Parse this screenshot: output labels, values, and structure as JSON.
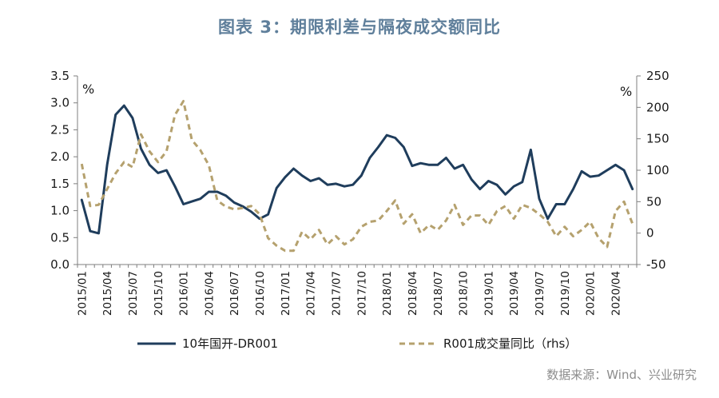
{
  "title": "图表 3：期限利差与隔夜成交额同比",
  "source": "数据来源：Wind、兴业研究",
  "chart_data": {
    "type": "line",
    "left_unit": "%",
    "right_unit": "%",
    "ylim_left": [
      0,
      3.5
    ],
    "yticks_left": [
      "0.0",
      "0.5",
      "1.0",
      "1.5",
      "2.0",
      "2.5",
      "3.0",
      "3.5"
    ],
    "ylim_right": [
      -50,
      250
    ],
    "yticks_right": [
      "-50",
      "0",
      "50",
      "100",
      "150",
      "200",
      "250"
    ],
    "x_tick_labels": [
      "2015/01",
      "2015/04",
      "2015/07",
      "2015/10",
      "2016/01",
      "2016/04",
      "2016/07",
      "2016/10",
      "2017/01",
      "2017/04",
      "2017/07",
      "2017/10",
      "2018/01",
      "2018/04",
      "2018/07",
      "2018/10",
      "2019/01",
      "2019/04",
      "2019/07",
      "2019/10",
      "2020/01",
      "2020/04"
    ],
    "x": [
      "2015/01",
      "2015/02",
      "2015/03",
      "2015/04",
      "2015/05",
      "2015/06",
      "2015/07",
      "2015/08",
      "2015/09",
      "2015/10",
      "2015/11",
      "2015/12",
      "2016/01",
      "2016/02",
      "2016/03",
      "2016/04",
      "2016/05",
      "2016/06",
      "2016/07",
      "2016/08",
      "2016/09",
      "2016/10",
      "2016/11",
      "2016/12",
      "2017/01",
      "2017/02",
      "2017/03",
      "2017/04",
      "2017/05",
      "2017/06",
      "2017/07",
      "2017/08",
      "2017/09",
      "2017/10",
      "2017/11",
      "2017/12",
      "2018/01",
      "2018/02",
      "2018/03",
      "2018/04",
      "2018/05",
      "2018/06",
      "2018/07",
      "2018/08",
      "2018/09",
      "2018/10",
      "2018/11",
      "2018/12",
      "2019/01",
      "2019/02",
      "2019/03",
      "2019/04",
      "2019/05",
      "2019/06",
      "2019/07",
      "2019/08",
      "2019/09",
      "2019/10",
      "2019/11",
      "2019/12",
      "2020/01",
      "2020/02",
      "2020/03",
      "2020/04",
      "2020/05",
      "2020/06"
    ],
    "series": [
      {
        "name": "10年国开-DR001",
        "axis": "left",
        "color": "#1f3d5c",
        "dash": "solid",
        "values": [
          1.2,
          0.62,
          0.58,
          1.85,
          2.78,
          2.95,
          2.72,
          2.15,
          1.85,
          1.7,
          1.75,
          1.45,
          1.12,
          1.17,
          1.22,
          1.35,
          1.35,
          1.28,
          1.15,
          1.08,
          0.98,
          0.85,
          0.93,
          1.42,
          1.62,
          1.78,
          1.65,
          1.55,
          1.6,
          1.48,
          1.5,
          1.45,
          1.48,
          1.65,
          1.98,
          2.18,
          2.4,
          2.35,
          2.18,
          1.83,
          1.88,
          1.85,
          1.85,
          1.98,
          1.78,
          1.85,
          1.58,
          1.4,
          1.55,
          1.48,
          1.3,
          1.45,
          1.53,
          2.13,
          1.22,
          0.85,
          1.12,
          1.12,
          1.4,
          1.73,
          1.63,
          1.65,
          1.75,
          1.85,
          1.75,
          1.4
        ]
      },
      {
        "name": "R001成交量同比（rhs）",
        "axis": "right",
        "color": "#b5a16e",
        "dash": "dashed",
        "values": [
          110,
          43,
          45,
          70,
          95,
          113,
          105,
          157,
          130,
          113,
          130,
          188,
          210,
          148,
          132,
          108,
          52,
          42,
          38,
          40,
          43,
          30,
          -8,
          -20,
          -28,
          -28,
          2,
          -10,
          5,
          -18,
          -5,
          -18,
          -10,
          10,
          18,
          20,
          35,
          52,
          15,
          30,
          0,
          13,
          5,
          20,
          45,
          13,
          28,
          28,
          13,
          35,
          43,
          23,
          45,
          40,
          30,
          18,
          -5,
          10,
          -5,
          5,
          18,
          -8,
          -22,
          35,
          50,
          15
        ]
      }
    ],
    "legend_position": "bottom",
    "grid": false
  }
}
